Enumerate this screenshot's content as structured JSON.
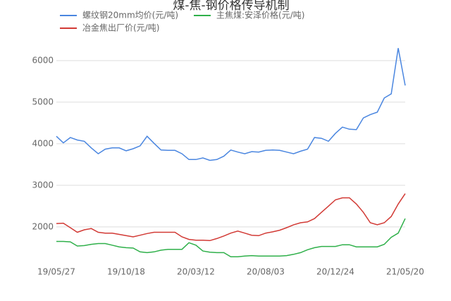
{
  "chart_data": {
    "type": "line",
    "title": "煤-焦-钢价格传导机制",
    "categories": [
      "19/05/27",
      null,
      null,
      null,
      null,
      null,
      null,
      null,
      null,
      null,
      "19/10/18",
      null,
      null,
      null,
      null,
      null,
      null,
      null,
      null,
      null,
      "20/03/12",
      null,
      null,
      null,
      null,
      null,
      null,
      null,
      null,
      null,
      "20/08/03",
      null,
      null,
      null,
      null,
      null,
      null,
      null,
      null,
      null,
      "20/12/24",
      null,
      null,
      null,
      null,
      null,
      null,
      null,
      null,
      null,
      "21/05/20"
    ],
    "series": [
      {
        "name": "螺纹钢20mm均价(元/吨)",
        "color": "#4a86e0",
        "values": [
          4180,
          4020,
          4150,
          4090,
          4060,
          3900,
          3760,
          3870,
          3900,
          3900,
          3830,
          3880,
          3950,
          4180,
          4010,
          3850,
          3840,
          3840,
          3760,
          3620,
          3620,
          3660,
          3600,
          3620,
          3700,
          3850,
          3800,
          3760,
          3810,
          3800,
          3840,
          3850,
          3840,
          3800,
          3760,
          3820,
          3870,
          4150,
          4130,
          4060,
          4250,
          4400,
          4350,
          4340,
          4620,
          4700,
          4760,
          5100,
          5200,
          6300,
          5400
        ]
      },
      {
        "name": "主焦煤:安泽价格(元/吨)",
        "color": "#2fb04a",
        "values": [
          1650,
          1650,
          1640,
          1540,
          1550,
          1580,
          1600,
          1600,
          1560,
          1520,
          1500,
          1490,
          1400,
          1380,
          1400,
          1440,
          1460,
          1460,
          1460,
          1620,
          1560,
          1420,
          1390,
          1380,
          1380,
          1280,
          1280,
          1300,
          1310,
          1300,
          1300,
          1300,
          1300,
          1310,
          1340,
          1380,
          1450,
          1500,
          1530,
          1530,
          1530,
          1570,
          1570,
          1520,
          1520,
          1520,
          1520,
          1580,
          1750,
          1850,
          2200
        ]
      },
      {
        "name": "冶金焦出厂价(元/吨)",
        "color": "#d23a35",
        "values": [
          2080,
          2090,
          1980,
          1870,
          1930,
          1960,
          1870,
          1850,
          1850,
          1820,
          1790,
          1760,
          1800,
          1840,
          1870,
          1870,
          1870,
          1870,
          1760,
          1700,
          1680,
          1680,
          1670,
          1720,
          1780,
          1850,
          1900,
          1850,
          1800,
          1790,
          1850,
          1880,
          1920,
          1980,
          2050,
          2100,
          2120,
          2200,
          2350,
          2500,
          2650,
          2700,
          2700,
          2550,
          2350,
          2100,
          2050,
          2100,
          2250,
          2550,
          2800
        ]
      }
    ],
    "ylim": [
      1150,
      6450
    ],
    "yticks": [
      2000,
      3000,
      4000,
      5000,
      6000
    ],
    "grid": true
  }
}
